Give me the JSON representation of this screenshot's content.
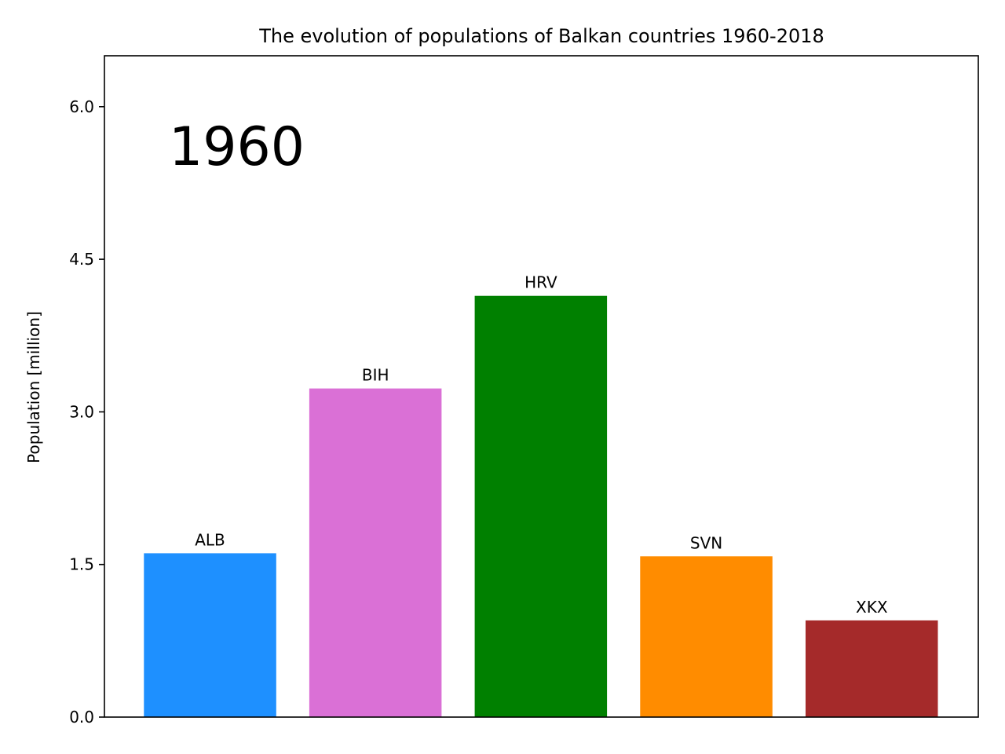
{
  "chart_data": {
    "type": "bar",
    "title": "The evolution of populations of Balkan countries 1960-2018",
    "xlabel": "",
    "ylabel": "Population [million]",
    "annotation": "1960",
    "ylim": [
      0,
      6.5
    ],
    "yticks": [
      0.0,
      1.5,
      3.0,
      4.5,
      6.0
    ],
    "ytick_labels": [
      "0.0",
      "1.5",
      "3.0",
      "4.5",
      "6.0"
    ],
    "grid": false,
    "categories": [
      "ALB",
      "BIH",
      "HRV",
      "SVN",
      "XKX"
    ],
    "values": [
      1.61,
      3.23,
      4.14,
      1.58,
      0.95
    ],
    "colors": [
      "#1e90ff",
      "#da70d6",
      "#008000",
      "#ff8c00",
      "#a52a2a"
    ]
  }
}
